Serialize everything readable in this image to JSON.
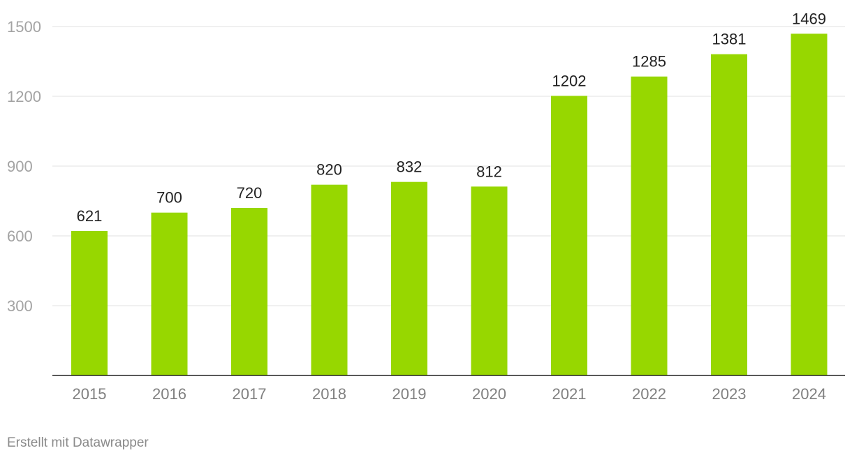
{
  "chart_data": {
    "type": "bar",
    "categories": [
      "2015",
      "2016",
      "2017",
      "2018",
      "2019",
      "2020",
      "2021",
      "2022",
      "2023",
      "2024"
    ],
    "values": [
      621,
      700,
      720,
      820,
      832,
      812,
      1202,
      1285,
      1381,
      1469
    ],
    "y_ticks": [
      300,
      600,
      900,
      1200,
      1500
    ],
    "ylim": [
      0,
      1500
    ],
    "grid": true,
    "data_labels": true,
    "bar_color": "#97d700",
    "title": "",
    "xlabel": "",
    "ylabel": ""
  },
  "footer": {
    "credit": "Erstellt mit Datawrapper"
  }
}
